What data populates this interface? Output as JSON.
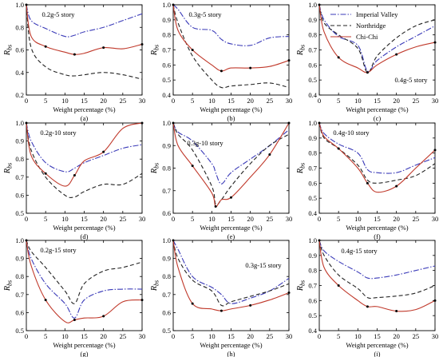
{
  "figure": {
    "legend": [
      "Imperial Valley",
      "Northridge",
      "Chi-Chi"
    ],
    "colors": {
      "imperial": "#3a3ab8",
      "northridge": "#222222",
      "chichi": "#c0392b"
    }
  },
  "chart_data": [
    {
      "type": "line",
      "panel": "(a)",
      "title": "0.2g-5 story",
      "xlabel": "Weight percentage (%)",
      "ylabel": "Rbs",
      "xlim": [
        0,
        30
      ],
      "ylim": [
        0.2,
        1.0
      ],
      "xticks": [
        0,
        5,
        10,
        15,
        20,
        25,
        30
      ],
      "yticks": [
        0.2,
        0.4,
        0.6,
        0.8,
        1.0
      ],
      "x": [
        0,
        1.25,
        5,
        10,
        12.5,
        15,
        20,
        25,
        30
      ],
      "series": [
        {
          "name": "Imperial Valley",
          "values": [
            1.0,
            0.86,
            0.79,
            0.72,
            0.73,
            0.76,
            0.8,
            0.86,
            0.92
          ]
        },
        {
          "name": "Northridge",
          "values": [
            1.0,
            0.62,
            0.45,
            0.38,
            0.37,
            0.38,
            0.4,
            0.38,
            0.34
          ]
        },
        {
          "name": "Chi-Chi",
          "values": [
            1.0,
            0.72,
            0.63,
            0.58,
            0.56,
            0.57,
            0.62,
            0.61,
            0.65
          ]
        }
      ]
    },
    {
      "type": "line",
      "panel": "(b)",
      "title": "0.3g-5 story",
      "xlabel": "Weight percentage (%)",
      "ylabel": "Rbs",
      "xlim": [
        0,
        30
      ],
      "ylim": [
        0.4,
        1.0
      ],
      "xticks": [
        0,
        5,
        10,
        15,
        20,
        25,
        30
      ],
      "yticks": [
        0.4,
        0.5,
        0.6,
        0.7,
        0.8,
        0.9,
        1.0
      ],
      "x": [
        0,
        1.25,
        5,
        10,
        12.5,
        15,
        20,
        25,
        30
      ],
      "series": [
        {
          "name": "Imperial Valley",
          "values": [
            1.0,
            0.97,
            0.85,
            0.83,
            0.77,
            0.74,
            0.73,
            0.78,
            0.79
          ]
        },
        {
          "name": "Northridge",
          "values": [
            1.0,
            0.88,
            0.66,
            0.5,
            0.45,
            0.46,
            0.47,
            0.48,
            0.45
          ]
        },
        {
          "name": "Chi-Chi",
          "values": [
            1.0,
            0.83,
            0.7,
            0.6,
            0.56,
            0.58,
            0.58,
            0.59,
            0.63
          ]
        }
      ]
    },
    {
      "type": "line",
      "panel": "(c)",
      "title": "0.4g-5 story",
      "xlabel": "Weight percentage (%)",
      "ylabel": "Rbs",
      "xlim": [
        0,
        30
      ],
      "ylim": [
        0.4,
        1.0
      ],
      "xticks": [
        0,
        5,
        10,
        15,
        20,
        25,
        30
      ],
      "yticks": [
        0.4,
        0.5,
        0.6,
        0.7,
        0.8,
        0.9,
        1.0
      ],
      "x": [
        0,
        1.25,
        5,
        10,
        12.5,
        15,
        20,
        25,
        30
      ],
      "series": [
        {
          "name": "Imperial Valley",
          "values": [
            1.0,
            0.9,
            0.79,
            0.73,
            0.56,
            0.63,
            0.72,
            0.79,
            0.86
          ]
        },
        {
          "name": "Northridge",
          "values": [
            1.0,
            0.88,
            0.8,
            0.71,
            0.55,
            0.66,
            0.78,
            0.86,
            0.9
          ]
        },
        {
          "name": "Chi-Chi",
          "values": [
            1.0,
            0.82,
            0.65,
            0.58,
            0.55,
            0.6,
            0.67,
            0.72,
            0.75
          ]
        }
      ]
    },
    {
      "type": "line",
      "panel": "(d)",
      "title": "0.2g-10 story",
      "xlabel": "Weight percentage (%)",
      "ylabel": "Rbs",
      "xlim": [
        0,
        30
      ],
      "ylim": [
        0.5,
        1.0
      ],
      "xticks": [
        0,
        5,
        10,
        15,
        20,
        25,
        30
      ],
      "yticks": [
        0.5,
        0.6,
        0.7,
        0.8,
        0.9,
        1.0
      ],
      "x": [
        0,
        1.25,
        5,
        10,
        12.5,
        15,
        20,
        25,
        30
      ],
      "series": [
        {
          "name": "Imperial Valley",
          "values": [
            1.0,
            0.9,
            0.78,
            0.73,
            0.75,
            0.78,
            0.82,
            0.86,
            0.88
          ]
        },
        {
          "name": "Northridge",
          "values": [
            1.0,
            0.85,
            0.7,
            0.6,
            0.59,
            0.62,
            0.66,
            0.66,
            0.72
          ]
        },
        {
          "name": "Chi-Chi",
          "values": [
            1.0,
            0.82,
            0.72,
            0.65,
            0.71,
            0.79,
            0.84,
            0.97,
            1.0
          ]
        }
      ]
    },
    {
      "type": "line",
      "panel": "(e)",
      "title": "0.3g-10 story",
      "xlabel": "Weight percentage (%)",
      "ylabel": "Rbs",
      "xlim": [
        0,
        30
      ],
      "ylim": [
        0.6,
        1.0
      ],
      "xticks": [
        0,
        5,
        10,
        15,
        20,
        25,
        30
      ],
      "yticks": [
        0.6,
        0.7,
        0.8,
        0.9,
        1.0
      ],
      "x": [
        0,
        1.25,
        5,
        10,
        11,
        12.5,
        15,
        20,
        25,
        30
      ],
      "series": [
        {
          "name": "Imperial Valley",
          "values": [
            1.0,
            0.96,
            0.92,
            0.82,
            0.78,
            0.73,
            0.78,
            0.84,
            0.9,
            0.97
          ]
        },
        {
          "name": "Northridge",
          "values": [
            1.0,
            0.95,
            0.88,
            0.72,
            0.64,
            0.66,
            0.72,
            0.82,
            0.9,
            0.95
          ]
        },
        {
          "name": "Chi-Chi",
          "values": [
            1.0,
            0.9,
            0.81,
            0.69,
            0.63,
            0.66,
            0.67,
            0.76,
            0.86,
            1.0
          ]
        }
      ]
    },
    {
      "type": "line",
      "panel": "(f)",
      "title": "0.4g-10 story",
      "xlabel": "Weight percentage (%)",
      "ylabel": "Rbs",
      "xlim": [
        0,
        30
      ],
      "ylim": [
        0.4,
        1.0
      ],
      "xticks": [
        0,
        5,
        10,
        15,
        20,
        25,
        30
      ],
      "yticks": [
        0.4,
        0.5,
        0.6,
        0.7,
        0.8,
        0.9,
        1.0
      ],
      "x": [
        0,
        1.25,
        5,
        10,
        12.5,
        15,
        20,
        25,
        30
      ],
      "series": [
        {
          "name": "Imperial Valley",
          "values": [
            1.0,
            0.93,
            0.86,
            0.8,
            0.69,
            0.67,
            0.67,
            0.72,
            0.77
          ]
        },
        {
          "name": "Northridge",
          "values": [
            1.0,
            0.9,
            0.83,
            0.72,
            0.62,
            0.6,
            0.62,
            0.65,
            0.73
          ]
        },
        {
          "name": "Chi-Chi",
          "values": [
            1.0,
            0.91,
            0.83,
            0.7,
            0.6,
            0.54,
            0.58,
            0.7,
            0.82
          ]
        }
      ]
    },
    {
      "type": "line",
      "panel": "(g)",
      "title": "0.2g-15 story",
      "xlabel": "Weight percentage (%)",
      "ylabel": "Rbs",
      "xlim": [
        0,
        30
      ],
      "ylim": [
        0.5,
        1.0
      ],
      "xticks": [
        0,
        5,
        10,
        15,
        20,
        25,
        30
      ],
      "yticks": [
        0.5,
        0.6,
        0.7,
        0.8,
        0.9,
        1.0
      ],
      "x": [
        0,
        1.25,
        5,
        10,
        12.5,
        15,
        20,
        25,
        30
      ],
      "series": [
        {
          "name": "Imperial Valley",
          "values": [
            1.0,
            0.9,
            0.76,
            0.65,
            0.57,
            0.67,
            0.72,
            0.73,
            0.73
          ]
        },
        {
          "name": "Northridge",
          "values": [
            1.0,
            0.94,
            0.85,
            0.72,
            0.65,
            0.76,
            0.83,
            0.85,
            0.88
          ]
        },
        {
          "name": "Chi-Chi",
          "values": [
            1.0,
            0.86,
            0.67,
            0.55,
            0.56,
            0.57,
            0.58,
            0.66,
            0.67
          ]
        }
      ]
    },
    {
      "type": "line",
      "panel": "(h)",
      "title": "0.3g-15 story",
      "xlabel": "Weight percentage (%)",
      "ylabel": "Rbs",
      "xlim": [
        0,
        30
      ],
      "ylim": [
        0.5,
        1.0
      ],
      "xticks": [
        0,
        5,
        10,
        15,
        20,
        25,
        30
      ],
      "yticks": [
        0.5,
        0.6,
        0.7,
        0.8,
        0.9,
        1.0
      ],
      "x": [
        0,
        1.25,
        5,
        10,
        12.5,
        15,
        20,
        25,
        30
      ],
      "series": [
        {
          "name": "Imperial Valley",
          "values": [
            1.0,
            0.95,
            0.8,
            0.74,
            0.7,
            0.65,
            0.68,
            0.72,
            0.79
          ]
        },
        {
          "name": "Northridge",
          "values": [
            1.0,
            0.9,
            0.78,
            0.72,
            0.64,
            0.66,
            0.69,
            0.72,
            0.76
          ]
        },
        {
          "name": "Chi-Chi",
          "values": [
            1.0,
            0.85,
            0.65,
            0.62,
            0.61,
            0.62,
            0.64,
            0.67,
            0.71
          ]
        }
      ]
    },
    {
      "type": "line",
      "panel": "(i)",
      "title": "0.4g-15 story",
      "xlabel": "Weight percentage (%)",
      "ylabel": "Rbs",
      "xlim": [
        0,
        30
      ],
      "ylim": [
        0.4,
        1.0
      ],
      "xticks": [
        0,
        5,
        10,
        15,
        20,
        25,
        30
      ],
      "yticks": [
        0.4,
        0.5,
        0.6,
        0.7,
        0.8,
        0.9,
        1.0
      ],
      "x": [
        0,
        1.25,
        5,
        10,
        12.5,
        15,
        20,
        25,
        30
      ],
      "series": [
        {
          "name": "Imperial Valley",
          "values": [
            1.0,
            0.93,
            0.86,
            0.79,
            0.75,
            0.75,
            0.77,
            0.8,
            0.83
          ]
        },
        {
          "name": "Northridge",
          "values": [
            1.0,
            0.9,
            0.77,
            0.68,
            0.62,
            0.62,
            0.63,
            0.65,
            0.7
          ]
        },
        {
          "name": "Chi-Chi",
          "values": [
            1.0,
            0.82,
            0.7,
            0.6,
            0.56,
            0.56,
            0.53,
            0.54,
            0.6
          ]
        }
      ]
    }
  ]
}
